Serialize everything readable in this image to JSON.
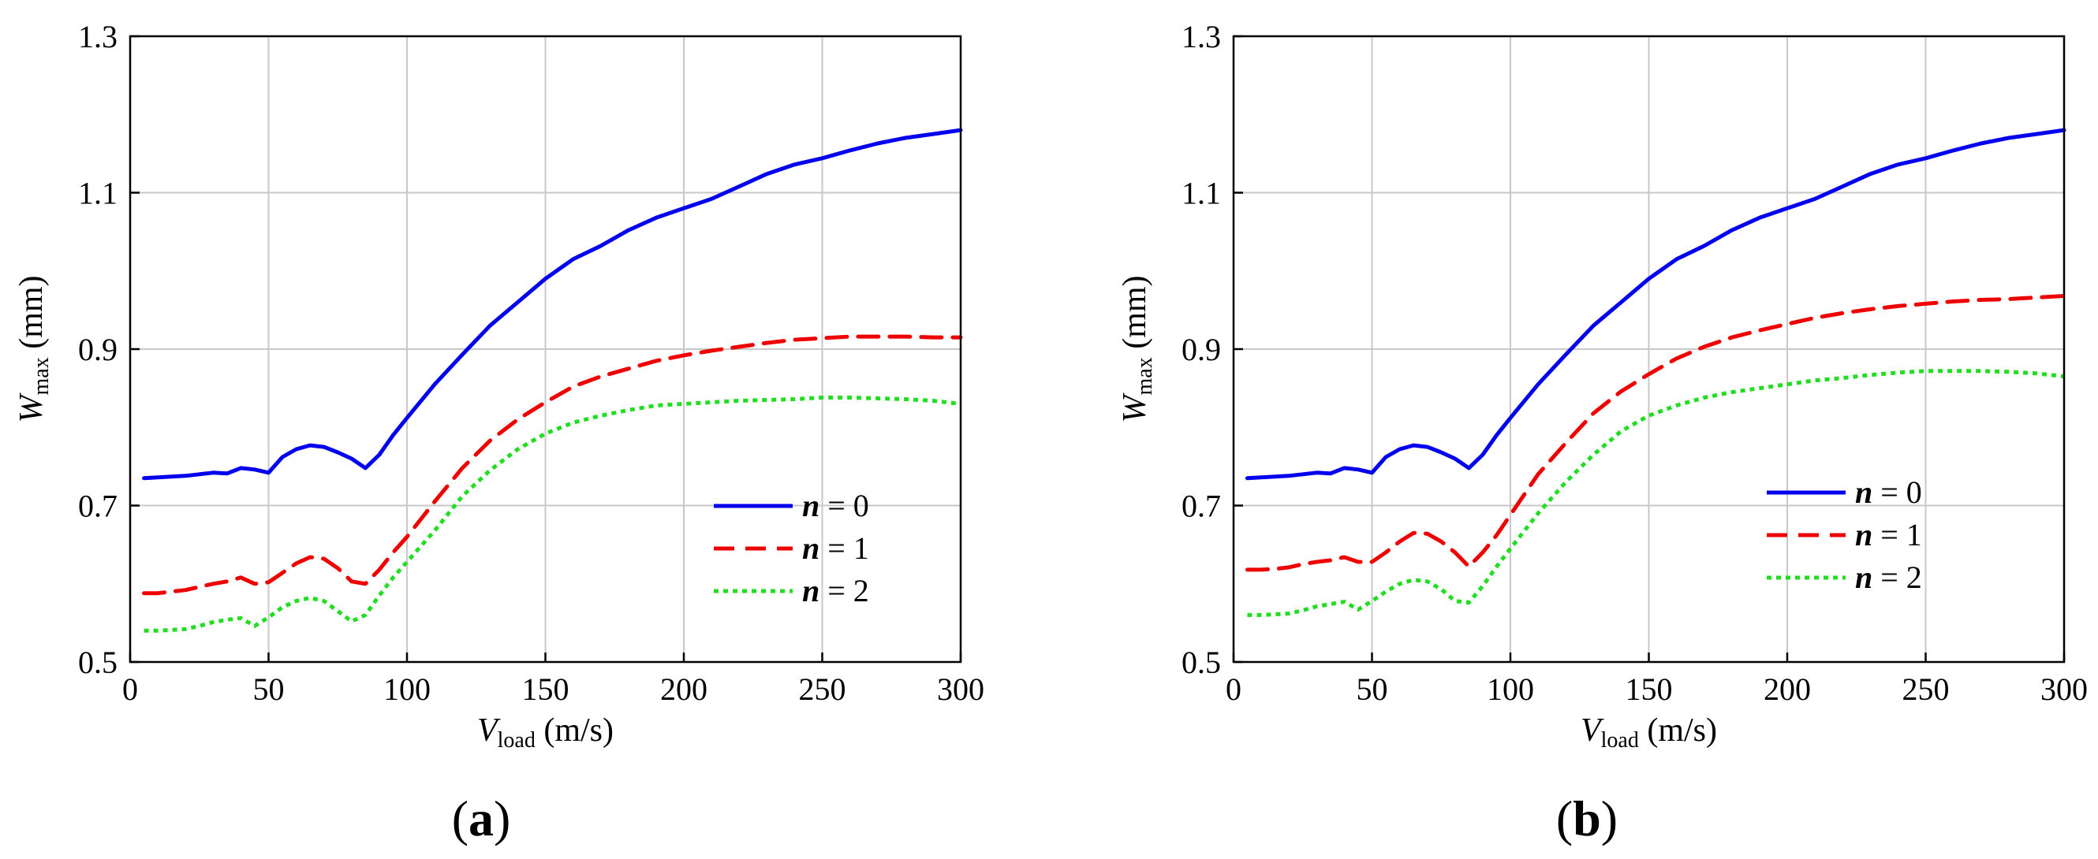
{
  "chart_data": [
    {
      "type": "line",
      "panel_label": "(a)",
      "panel_letter": "a",
      "xlabel": "V",
      "xlabel_sub": "load",
      "xlabel_unit": "(m/s)",
      "ylabel": "W",
      "ylabel_sub": "max",
      "ylabel_unit": "(mm)",
      "xlim": [
        0,
        300
      ],
      "ylim": [
        0.5,
        1.3
      ],
      "xticks": [
        "0",
        "50",
        "100",
        "150",
        "200",
        "250",
        "300"
      ],
      "yticks": [
        "0.5",
        "0.7",
        "0.9",
        "1.1",
        "1.3"
      ],
      "grid": true,
      "legend_position": "lower-right",
      "series": [
        {
          "name_var": "n",
          "name_eq": " = 0",
          "color": "#0000ee",
          "style": "solid",
          "x": [
            5,
            10,
            15,
            20,
            25,
            30,
            35,
            40,
            45,
            50,
            55,
            60,
            65,
            70,
            75,
            80,
            85,
            90,
            95,
            100,
            110,
            120,
            130,
            140,
            150,
            160,
            170,
            180,
            190,
            200,
            210,
            220,
            230,
            240,
            250,
            260,
            270,
            280,
            290,
            300
          ],
          "y": [
            0.735,
            0.736,
            0.737,
            0.738,
            0.74,
            0.742,
            0.741,
            0.748,
            0.746,
            0.742,
            0.762,
            0.772,
            0.777,
            0.775,
            0.768,
            0.76,
            0.748,
            0.765,
            0.79,
            0.812,
            0.855,
            0.893,
            0.93,
            0.96,
            0.99,
            1.015,
            1.032,
            1.052,
            1.068,
            1.08,
            1.092,
            1.108,
            1.124,
            1.136,
            1.144,
            1.154,
            1.163,
            1.17,
            1.175,
            1.18
          ]
        },
        {
          "name_var": "n",
          "name_eq": " = 1",
          "color": "#ee0000",
          "style": "dashed",
          "x": [
            5,
            10,
            15,
            20,
            25,
            30,
            35,
            40,
            45,
            50,
            55,
            60,
            65,
            70,
            75,
            80,
            85,
            90,
            95,
            100,
            110,
            120,
            130,
            140,
            150,
            160,
            170,
            180,
            190,
            200,
            210,
            220,
            230,
            240,
            250,
            260,
            270,
            280,
            290,
            300
          ],
          "y": [
            0.588,
            0.588,
            0.59,
            0.592,
            0.596,
            0.6,
            0.603,
            0.608,
            0.6,
            0.602,
            0.614,
            0.626,
            0.634,
            0.632,
            0.62,
            0.603,
            0.6,
            0.618,
            0.64,
            0.66,
            0.705,
            0.748,
            0.783,
            0.81,
            0.832,
            0.852,
            0.865,
            0.875,
            0.885,
            0.892,
            0.898,
            0.903,
            0.908,
            0.912,
            0.914,
            0.916,
            0.916,
            0.916,
            0.915,
            0.915
          ]
        },
        {
          "name_var": "n",
          "name_eq": " = 2",
          "color": "#22dd22",
          "style": "dotted",
          "x": [
            5,
            10,
            15,
            20,
            25,
            30,
            35,
            40,
            45,
            50,
            55,
            60,
            65,
            70,
            75,
            80,
            85,
            90,
            95,
            100,
            110,
            120,
            130,
            140,
            150,
            160,
            170,
            180,
            190,
            200,
            210,
            220,
            230,
            240,
            250,
            260,
            270,
            280,
            290,
            300
          ],
          "y": [
            0.54,
            0.54,
            0.541,
            0.542,
            0.546,
            0.551,
            0.554,
            0.556,
            0.546,
            0.557,
            0.57,
            0.578,
            0.582,
            0.578,
            0.565,
            0.552,
            0.56,
            0.585,
            0.608,
            0.628,
            0.668,
            0.712,
            0.745,
            0.772,
            0.792,
            0.806,
            0.815,
            0.822,
            0.828,
            0.83,
            0.832,
            0.834,
            0.835,
            0.836,
            0.838,
            0.838,
            0.837,
            0.836,
            0.834,
            0.83
          ]
        }
      ]
    },
    {
      "type": "line",
      "panel_label": "(b)",
      "panel_letter": "b",
      "xlabel": "V",
      "xlabel_sub": "load",
      "xlabel_unit": "(m/s)",
      "ylabel": "W",
      "ylabel_sub": "max",
      "ylabel_unit": "(mm)",
      "xlim": [
        0,
        300
      ],
      "ylim": [
        0.5,
        1.3
      ],
      "xticks": [
        "0",
        "50",
        "100",
        "150",
        "200",
        "250",
        "300"
      ],
      "yticks": [
        "0.5",
        "0.7",
        "0.9",
        "1.1",
        "1.3"
      ],
      "grid": true,
      "legend_position": "center-right",
      "series": [
        {
          "name_var": "n",
          "name_eq": " = 0",
          "color": "#0000ee",
          "style": "solid",
          "x": [
            5,
            10,
            15,
            20,
            25,
            30,
            35,
            40,
            45,
            50,
            55,
            60,
            65,
            70,
            75,
            80,
            85,
            90,
            95,
            100,
            110,
            120,
            130,
            140,
            150,
            160,
            170,
            180,
            190,
            200,
            210,
            220,
            230,
            240,
            250,
            260,
            270,
            280,
            290,
            300
          ],
          "y": [
            0.735,
            0.736,
            0.737,
            0.738,
            0.74,
            0.742,
            0.741,
            0.748,
            0.746,
            0.742,
            0.762,
            0.772,
            0.777,
            0.775,
            0.768,
            0.76,
            0.748,
            0.765,
            0.79,
            0.812,
            0.855,
            0.893,
            0.93,
            0.96,
            0.99,
            1.015,
            1.032,
            1.052,
            1.068,
            1.08,
            1.092,
            1.108,
            1.124,
            1.136,
            1.144,
            1.154,
            1.163,
            1.17,
            1.175,
            1.18
          ]
        },
        {
          "name_var": "n",
          "name_eq": " = 1",
          "color": "#ee0000",
          "style": "dashed",
          "x": [
            5,
            10,
            15,
            20,
            25,
            30,
            35,
            40,
            45,
            50,
            55,
            60,
            65,
            70,
            75,
            80,
            85,
            90,
            95,
            100,
            110,
            120,
            130,
            140,
            150,
            160,
            170,
            180,
            190,
            200,
            210,
            220,
            230,
            240,
            250,
            260,
            270,
            280,
            290,
            300
          ],
          "y": [
            0.618,
            0.618,
            0.619,
            0.621,
            0.625,
            0.628,
            0.63,
            0.634,
            0.628,
            0.628,
            0.64,
            0.654,
            0.665,
            0.664,
            0.654,
            0.64,
            0.622,
            0.64,
            0.662,
            0.688,
            0.74,
            0.78,
            0.818,
            0.846,
            0.868,
            0.888,
            0.903,
            0.915,
            0.924,
            0.932,
            0.94,
            0.946,
            0.951,
            0.955,
            0.958,
            0.961,
            0.963,
            0.964,
            0.966,
            0.968
          ]
        },
        {
          "name_var": "n",
          "name_eq": " = 2",
          "color": "#22dd22",
          "style": "dotted",
          "x": [
            5,
            10,
            15,
            20,
            25,
            30,
            35,
            40,
            45,
            50,
            55,
            60,
            65,
            70,
            75,
            80,
            85,
            90,
            95,
            100,
            110,
            120,
            130,
            140,
            150,
            160,
            170,
            180,
            190,
            200,
            210,
            220,
            230,
            240,
            250,
            260,
            270,
            280,
            290,
            300
          ],
          "y": [
            0.56,
            0.56,
            0.561,
            0.562,
            0.566,
            0.571,
            0.574,
            0.577,
            0.567,
            0.578,
            0.59,
            0.6,
            0.605,
            0.603,
            0.593,
            0.578,
            0.576,
            0.597,
            0.622,
            0.645,
            0.69,
            0.73,
            0.765,
            0.795,
            0.815,
            0.828,
            0.838,
            0.845,
            0.85,
            0.855,
            0.86,
            0.863,
            0.867,
            0.87,
            0.872,
            0.872,
            0.872,
            0.871,
            0.869,
            0.865
          ]
        }
      ]
    }
  ]
}
